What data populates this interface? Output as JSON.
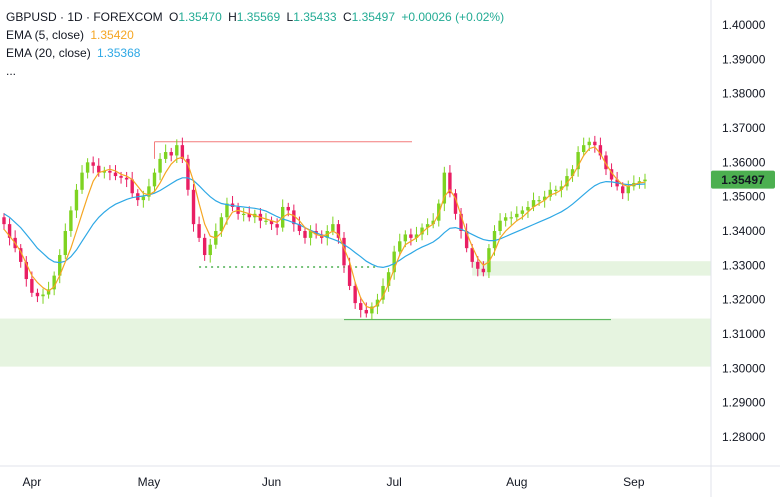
{
  "legend": {
    "symbol": "GBPUSD · 1D · FOREXCOM",
    "o_label": "O",
    "o": "1.35470",
    "h_label": "H",
    "h": "1.35569",
    "l_label": "L",
    "l": "1.35433",
    "c_label": "C",
    "c": "1.35497",
    "change": "+0.00026 (+0.02%)",
    "ema5_label": "EMA (5, close)",
    "ema5_value": "1.35420",
    "ema20_label": "EMA (20, close)",
    "ema20_value": "1.35368",
    "more": "..."
  },
  "colors": {
    "up": "#22ab94",
    "candle_up": "#7ed321",
    "candle_down": "#e91e63",
    "ema5": "#f5a623",
    "ema20": "#2ea8e5",
    "zone": "#e6f4e0",
    "resistance": "#f47c7c",
    "support_dotted": "#4caf50",
    "support_line": "#4caf50",
    "price_tag": "#4caf50"
  },
  "price_tag": "1.35497",
  "chart_data": {
    "type": "candlestick",
    "ylim": [
      1.272,
      1.404
    ],
    "y_ticks": [
      "1.40000",
      "1.39000",
      "1.38000",
      "1.37000",
      "1.36000",
      "1.35000",
      "1.34000",
      "1.33000",
      "1.32000",
      "1.31000",
      "1.30000",
      "1.29000",
      "1.28000"
    ],
    "x_ticks": [
      "Apr",
      "May",
      "Jun",
      "Jul",
      "Aug",
      "Sep"
    ],
    "x_tick_index": [
      5,
      26,
      48,
      70,
      92,
      113
    ],
    "ema5": [
      1.3405,
      1.3385,
      1.3365,
      1.334,
      1.3305,
      1.327,
      1.325,
      1.3235,
      1.3225,
      1.3238,
      1.327,
      1.331,
      1.335,
      1.34,
      1.345,
      1.35,
      1.3545,
      1.357,
      1.3575,
      1.358,
      1.3575,
      1.3565,
      1.356,
      1.355,
      1.353,
      1.351,
      1.3505,
      1.3515,
      1.354,
      1.357,
      1.3595,
      1.361,
      1.3615,
      1.3595,
      1.3545,
      1.348,
      1.342,
      1.3385,
      1.338,
      1.3395,
      1.343,
      1.3455,
      1.346,
      1.3455,
      1.345,
      1.3445,
      1.344,
      1.3435,
      1.343,
      1.3425,
      1.344,
      1.345,
      1.3445,
      1.343,
      1.341,
      1.34,
      1.339,
      1.3385,
      1.339,
      1.34,
      1.339,
      1.335,
      1.331,
      1.325,
      1.3205,
      1.318,
      1.3175,
      1.3185,
      1.321,
      1.3245,
      1.329,
      1.333,
      1.336,
      1.337,
      1.338,
      1.3395,
      1.341,
      1.342,
      1.345,
      1.35,
      1.352,
      1.3495,
      1.3445,
      1.3395,
      1.3355,
      1.332,
      1.33,
      1.331,
      1.334,
      1.338,
      1.34,
      1.3415,
      1.343,
      1.344,
      1.3455,
      1.347,
      1.348,
      1.349,
      1.3505,
      1.351,
      1.352,
      1.354,
      1.356,
      1.359,
      1.362,
      1.364,
      1.3645,
      1.3625,
      1.3595,
      1.357,
      1.355,
      1.3535,
      1.353,
      1.3535,
      1.354,
      1.3542
    ],
    "ema20": [
      1.345,
      1.344,
      1.3425,
      1.341,
      1.339,
      1.337,
      1.335,
      1.3335,
      1.332,
      1.331,
      1.3308,
      1.3312,
      1.3325,
      1.3345,
      1.337,
      1.3395,
      1.342,
      1.344,
      1.3455,
      1.3468,
      1.3478,
      1.3485,
      1.3492,
      1.3497,
      1.35,
      1.3502,
      1.3505,
      1.351,
      1.3518,
      1.3528,
      1.3538,
      1.3548,
      1.3555,
      1.3555,
      1.3547,
      1.3532,
      1.3515,
      1.35,
      1.3488,
      1.348,
      1.3477,
      1.3474,
      1.3472,
      1.347,
      1.3468,
      1.3466,
      1.3463,
      1.3458,
      1.345,
      1.3442,
      1.3435,
      1.343,
      1.3424,
      1.3418,
      1.341,
      1.3402,
      1.3395,
      1.3388,
      1.3382,
      1.3376,
      1.337,
      1.336,
      1.335,
      1.3337,
      1.3325,
      1.3312,
      1.3303,
      1.3296,
      1.3294,
      1.3298,
      1.3305,
      1.3315,
      1.3326,
      1.3335,
      1.3345,
      1.3353,
      1.336,
      1.3368,
      1.338,
      1.3395,
      1.3408,
      1.341,
      1.3405,
      1.3398,
      1.339,
      1.3382,
      1.3375,
      1.3372,
      1.3372,
      1.3377,
      1.3384,
      1.3391,
      1.3398,
      1.3405,
      1.3412,
      1.3419,
      1.3426,
      1.3433,
      1.344,
      1.3448,
      1.3456,
      1.3466,
      1.3478,
      1.3492,
      1.3506,
      1.352,
      1.3532,
      1.354,
      1.3544,
      1.3543,
      1.354,
      1.3537,
      1.3535,
      1.3535,
      1.3536,
      1.3537
    ],
    "close": [
      1.342,
      1.338,
      1.335,
      1.331,
      1.326,
      1.322,
      1.321,
      1.3215,
      1.323,
      1.327,
      1.333,
      1.34,
      1.346,
      1.352,
      1.357,
      1.36,
      1.359,
      1.357,
      1.3575,
      1.357,
      1.356,
      1.3555,
      1.355,
      1.351,
      1.349,
      1.35,
      1.353,
      1.357,
      1.361,
      1.363,
      1.362,
      1.365,
      1.361,
      1.352,
      1.342,
      1.338,
      1.333,
      1.336,
      1.34,
      1.344,
      1.348,
      1.347,
      1.345,
      1.345,
      1.344,
      1.345,
      1.343,
      1.343,
      1.342,
      1.341,
      1.347,
      1.346,
      1.342,
      1.34,
      1.338,
      1.34,
      1.339,
      1.338,
      1.34,
      1.342,
      1.338,
      1.33,
      1.324,
      1.319,
      1.317,
      1.316,
      1.318,
      1.32,
      1.324,
      1.328,
      1.334,
      1.337,
      1.339,
      1.338,
      1.339,
      1.341,
      1.342,
      1.343,
      1.348,
      1.357,
      1.351,
      1.345,
      1.34,
      1.335,
      1.331,
      1.329,
      1.328,
      1.335,
      1.34,
      1.343,
      1.344,
      1.344,
      1.345,
      1.346,
      1.347,
      1.349,
      1.349,
      1.35,
      1.352,
      1.352,
      1.353,
      1.356,
      1.358,
      1.363,
      1.365,
      1.366,
      1.365,
      1.362,
      1.358,
      1.355,
      1.353,
      1.351,
      1.353,
      1.354,
      1.3545,
      1.35497
    ]
  }
}
